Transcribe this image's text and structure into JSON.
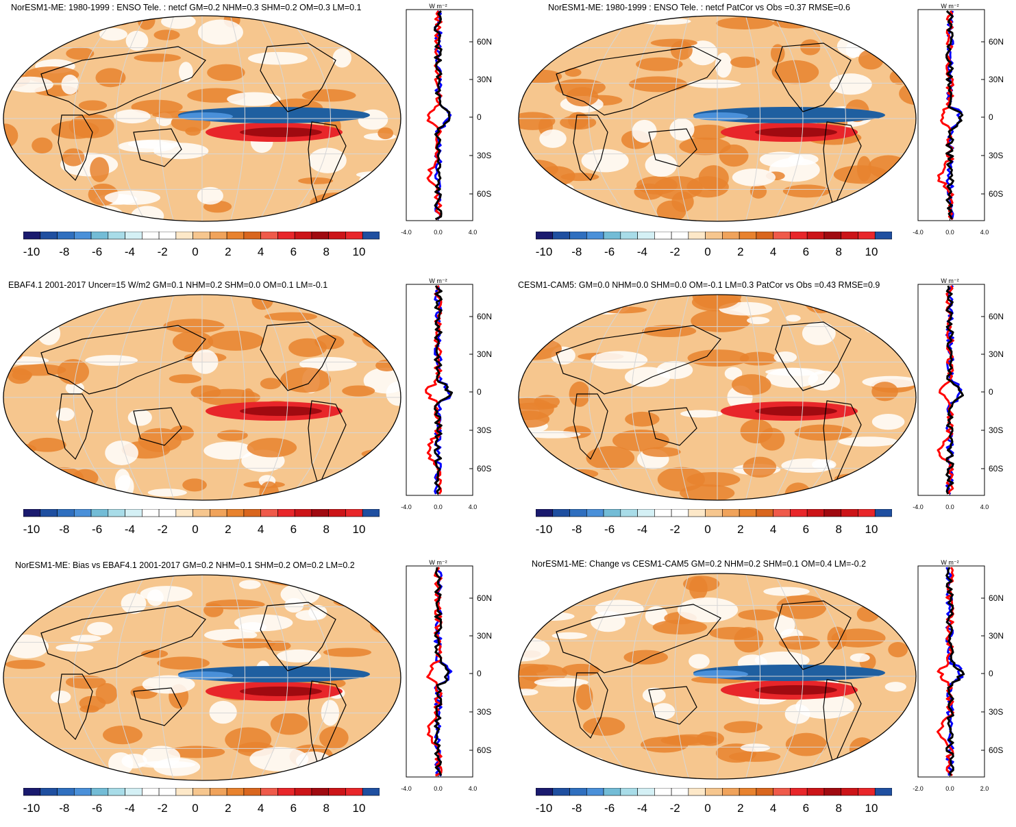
{
  "colorbar": {
    "labels": [
      "-10",
      "-8",
      "-6",
      "-4",
      "-2",
      "0",
      "2",
      "4",
      "6",
      "8",
      "10"
    ],
    "colors": [
      "#1a1a6e",
      "#1f4fa0",
      "#2f6fbf",
      "#4a90d9",
      "#73bcd6",
      "#a8dce8",
      "#d4f0f5",
      "#ffffff",
      "#ffffff",
      "#fde8c8",
      "#f6c68e",
      "#f0a35b",
      "#e8822e",
      "#d9661e",
      "#ef5a4a",
      "#e8262a",
      "#cc1418",
      "#a00a10",
      "#cc1418",
      "#e8262a",
      "#1f4fa0"
    ]
  },
  "panels": [
    {
      "id": "p1",
      "title": "NorESM1-ME: 1980-1999 : ENSO Tele. : netcf GM=0.2 NHM=0.3 SHM=0.2 OM=0.3 LM=0.1",
      "profile": {
        "unit": "W m⁻²",
        "lat_ticks": [
          "60N",
          "30N",
          "0",
          "30S",
          "60S"
        ],
        "x_ticks": [
          "-4.0",
          "0.0",
          "4.0"
        ],
        "xlim": [
          -4,
          4
        ]
      }
    },
    {
      "id": "p2",
      "title": "NorESM1-ME: 1980-1999 : ENSO Tele. : netcf PatCor vs Obs =0.37 RMSE=0.6",
      "profile": {
        "unit": "W m⁻²",
        "lat_ticks": [
          "60N",
          "30N",
          "0",
          "30S",
          "60S"
        ],
        "x_ticks": [
          "-4.0",
          "0.0",
          "4.0"
        ],
        "xlim": [
          -4,
          4
        ]
      }
    },
    {
      "id": "p3",
      "title": "EBAF4.1 2001-2017 Uncer=15 W/m2 GM=0.1 NHM=0.2 SHM=0.0 OM=0.1 LM=-0.1",
      "profile": {
        "unit": "W m⁻²",
        "lat_ticks": [
          "60N",
          "30N",
          "0",
          "30S",
          "60S"
        ],
        "x_ticks": [
          "-4.0",
          "0.0",
          "4.0"
        ],
        "xlim": [
          -4,
          4
        ]
      }
    },
    {
      "id": "p4",
      "title": "CESM1-CAM5: GM=0.0 NHM=0.0 SHM=0.0 OM=-0.1 LM=0.3 PatCor vs Obs =0.43 RMSE=0.9",
      "profile": {
        "unit": "W m⁻²",
        "lat_ticks": [
          "60N",
          "30N",
          "0",
          "30S",
          "60S"
        ],
        "x_ticks": [
          "-4.0",
          "0.0",
          "4.0"
        ],
        "xlim": [
          -4,
          4
        ]
      }
    },
    {
      "id": "p5",
      "title": "NorESM1-ME: Bias vs EBAF4.1 2001-2017 GM=0.2 NHM=0.1 SHM=0.2 OM=0.2 LM=0.2",
      "profile": {
        "unit": "W m⁻²",
        "lat_ticks": [
          "60N",
          "30N",
          "0",
          "30S",
          "60S"
        ],
        "x_ticks": [
          "-4.0",
          "0.0",
          "4.0"
        ],
        "xlim": [
          -4,
          4
        ]
      }
    },
    {
      "id": "p6",
      "title": "NorESM1-ME: Change vs CESM1-CAM5 GM=0.2 NHM=0.2 SHM=0.1 OM=0.4 LM=-0.2",
      "profile": {
        "unit": "W m⁻²",
        "lat_ticks": [
          "60N",
          "30N",
          "0",
          "30S",
          "60S"
        ],
        "x_ticks": [
          "-2.0",
          "0.0",
          "2.0"
        ],
        "xlim": [
          -3,
          3
        ]
      }
    }
  ]
}
